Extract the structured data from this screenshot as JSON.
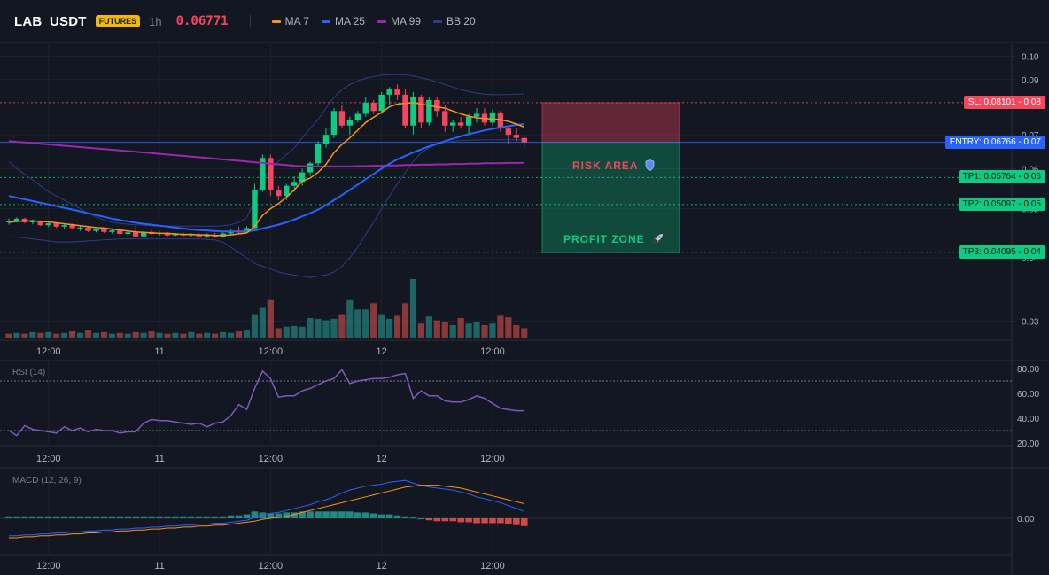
{
  "header": {
    "symbol": "LAB_USDT",
    "badge": "FUTURES",
    "timeframe": "1h",
    "price": "0.06771",
    "price_color": "#f6465d"
  },
  "legend": [
    {
      "label": "MA 7",
      "color": "#f7931a"
    },
    {
      "label": "MA 25",
      "color": "#2962ff"
    },
    {
      "label": "MA 99",
      "color": "#9c27b0"
    },
    {
      "label": "BB 20",
      "color": "#2a3e8a"
    }
  ],
  "time_axis": [
    "12:00",
    "11",
    "12:00",
    "12",
    "12:00"
  ],
  "price_axis": [
    "0.10",
    "0.09",
    "0.07",
    "0.06",
    "0.05",
    "0.04",
    "0.03"
  ],
  "zones": {
    "risk_label": "RISK AREA",
    "profit_label": "PROFIT ZONE",
    "risk_icon": "shield-icon",
    "profit_icon": "rocket-icon"
  },
  "levels": [
    {
      "label": "SL: 0.08101",
      "axis": "0.08",
      "price": 0.08101,
      "color": "#f6465d"
    },
    {
      "label": "ENTRY: 0.06766",
      "axis": "0.07",
      "price": 0.06766,
      "color": "#2962ff"
    },
    {
      "label": "TP1: 0.05764",
      "axis": "0.06",
      "price": 0.05764,
      "color": "#0ecb81"
    },
    {
      "label": "TP2: 0.05097",
      "axis": "0.05",
      "price": 0.05097,
      "color": "#0ecb81"
    },
    {
      "label": "TP3: 0.04095",
      "axis": "0.04",
      "price": 0.04095,
      "color": "#0ecb81"
    }
  ],
  "rsi": {
    "title": "RSI (14)",
    "axis": [
      "80.00",
      "60.00",
      "40.00",
      "20.00"
    ],
    "levels": [
      70,
      30
    ],
    "values": [
      30,
      26,
      34,
      31,
      30,
      29,
      28,
      33,
      30,
      32,
      29,
      31,
      30,
      30,
      28,
      29,
      29,
      36,
      39,
      38,
      38,
      37,
      36,
      35,
      36,
      33,
      36,
      37,
      42,
      51,
      47,
      64,
      78,
      72,
      57,
      58,
      58,
      62,
      64,
      67,
      70,
      72,
      79,
      68,
      70,
      71,
      72,
      72,
      73,
      75,
      76,
      56,
      62,
      58,
      58,
      54,
      53,
      53,
      55,
      58,
      56,
      52,
      48,
      47,
      46,
      46
    ]
  },
  "macd": {
    "title": "MACD (12, 26, 9)",
    "axis": [
      "0.00"
    ],
    "macd_line": [
      -0.0018,
      -0.0018,
      -0.0017,
      -0.0017,
      -0.0016,
      -0.0016,
      -0.0015,
      -0.0015,
      -0.0014,
      -0.0014,
      -0.0013,
      -0.0013,
      -0.0012,
      -0.0012,
      -0.0011,
      -0.0011,
      -0.001,
      -0.001,
      -0.0009,
      -0.0009,
      -0.0008,
      -0.0008,
      -0.0007,
      -0.0007,
      -0.0006,
      -0.0006,
      -0.0005,
      -0.0005,
      -0.0004,
      -0.0003,
      -0.0002,
      0.0001,
      0.0004,
      0.0005,
      0.0006,
      0.0008,
      0.001,
      0.0012,
      0.0014,
      0.0017,
      0.0019,
      0.0022,
      0.0026,
      0.0029,
      0.0031,
      0.0033,
      0.0034,
      0.0035,
      0.0037,
      0.0038,
      0.0039,
      0.0036,
      0.0034,
      0.0032,
      0.0031,
      0.003,
      0.0029,
      0.0027,
      0.0025,
      0.0022,
      0.002,
      0.0018,
      0.0016,
      0.0013,
      0.001,
      0.0007
    ],
    "signal_line": [
      -0.002,
      -0.002,
      -0.0019,
      -0.0019,
      -0.0018,
      -0.0018,
      -0.0017,
      -0.0017,
      -0.0016,
      -0.0016,
      -0.0015,
      -0.0015,
      -0.0014,
      -0.0014,
      -0.0013,
      -0.0013,
      -0.0012,
      -0.0012,
      -0.0011,
      -0.0011,
      -0.001,
      -0.001,
      -0.0009,
      -0.0009,
      -0.0008,
      -0.0008,
      -0.0007,
      -0.0007,
      -0.0006,
      -0.0005,
      -0.0004,
      -0.0003,
      -0.0001,
      0.0,
      0.0001,
      0.0002,
      0.0004,
      0.0006,
      0.0008,
      0.001,
      0.0012,
      0.0014,
      0.0016,
      0.0018,
      0.002,
      0.0022,
      0.0024,
      0.0026,
      0.0028,
      0.003,
      0.0032,
      0.0033,
      0.0034,
      0.0034,
      0.0034,
      0.0033,
      0.0032,
      0.0031,
      0.0029,
      0.0027,
      0.0025,
      0.0023,
      0.0021,
      0.0019,
      0.0017,
      0.0015
    ],
    "histogram": [
      0.0002,
      0.0002,
      0.0002,
      0.0002,
      0.0002,
      0.0002,
      0.0002,
      0.0002,
      0.0002,
      0.0002,
      0.0002,
      0.0002,
      0.0002,
      0.0002,
      0.0002,
      0.0002,
      0.0002,
      0.0002,
      0.0002,
      0.0002,
      0.0002,
      0.0002,
      0.0002,
      0.0002,
      0.0002,
      0.0002,
      0.0002,
      0.0002,
      0.0003,
      0.0003,
      0.0004,
      0.0007,
      0.0006,
      0.0005,
      0.0005,
      0.0006,
      0.0006,
      0.0007,
      0.0007,
      0.0007,
      0.0007,
      0.0007,
      0.0007,
      0.0007,
      0.0006,
      0.0006,
      0.0005,
      0.0004,
      0.0004,
      0.0003,
      0.0002,
      0.0001,
      0.0,
      -0.0002,
      -0.0003,
      -0.0003,
      -0.0003,
      -0.0004,
      -0.0004,
      -0.0005,
      -0.0005,
      -0.0005,
      -0.0005,
      -0.0006,
      -0.0007,
      -0.0008
    ]
  },
  "chart_data": {
    "type": "candlestick",
    "symbol": "LAB_USDT",
    "interval": "1h",
    "x_ticks": [
      "12:00",
      "11",
      "12:00",
      "12",
      "12:00"
    ],
    "y_ticks": [
      0.1,
      0.09,
      0.07,
      0.06,
      0.05,
      0.04,
      0.03
    ],
    "ylim": [
      0.0275,
      0.1065
    ],
    "log_scale": true,
    "candles": [
      {
        "o": 0.047,
        "h": 0.0478,
        "l": 0.0465,
        "c": 0.0473
      },
      {
        "o": 0.0473,
        "h": 0.0481,
        "l": 0.047,
        "c": 0.0478
      },
      {
        "o": 0.0478,
        "h": 0.048,
        "l": 0.0468,
        "c": 0.047
      },
      {
        "o": 0.047,
        "h": 0.0476,
        "l": 0.0466,
        "c": 0.0472
      },
      {
        "o": 0.0472,
        "h": 0.0474,
        "l": 0.0462,
        "c": 0.0464
      },
      {
        "o": 0.0464,
        "h": 0.047,
        "l": 0.046,
        "c": 0.0468
      },
      {
        "o": 0.0468,
        "h": 0.047,
        "l": 0.0458,
        "c": 0.0461
      },
      {
        "o": 0.0461,
        "h": 0.0466,
        "l": 0.0456,
        "c": 0.0464
      },
      {
        "o": 0.0464,
        "h": 0.0467,
        "l": 0.0455,
        "c": 0.0458
      },
      {
        "o": 0.0458,
        "h": 0.0462,
        "l": 0.0452,
        "c": 0.0459
      },
      {
        "o": 0.0459,
        "h": 0.0461,
        "l": 0.045,
        "c": 0.0452
      },
      {
        "o": 0.0452,
        "h": 0.0457,
        "l": 0.0449,
        "c": 0.0455
      },
      {
        "o": 0.0455,
        "h": 0.0458,
        "l": 0.0448,
        "c": 0.045
      },
      {
        "o": 0.045,
        "h": 0.0456,
        "l": 0.0447,
        "c": 0.0453
      },
      {
        "o": 0.0453,
        "h": 0.0455,
        "l": 0.0443,
        "c": 0.0446
      },
      {
        "o": 0.0446,
        "h": 0.0451,
        "l": 0.0442,
        "c": 0.0449
      },
      {
        "o": 0.0449,
        "h": 0.0462,
        "l": 0.044,
        "c": 0.0441
      },
      {
        "o": 0.0441,
        "h": 0.0452,
        "l": 0.0439,
        "c": 0.045
      },
      {
        "o": 0.045,
        "h": 0.0454,
        "l": 0.0444,
        "c": 0.0446
      },
      {
        "o": 0.0446,
        "h": 0.0451,
        "l": 0.0442,
        "c": 0.0448
      },
      {
        "o": 0.0448,
        "h": 0.045,
        "l": 0.044,
        "c": 0.0443
      },
      {
        "o": 0.0443,
        "h": 0.0448,
        "l": 0.044,
        "c": 0.0446
      },
      {
        "o": 0.0446,
        "h": 0.0449,
        "l": 0.0441,
        "c": 0.0443
      },
      {
        "o": 0.0443,
        "h": 0.0447,
        "l": 0.0439,
        "c": 0.0445
      },
      {
        "o": 0.0445,
        "h": 0.0447,
        "l": 0.0439,
        "c": 0.0441
      },
      {
        "o": 0.0441,
        "h": 0.0447,
        "l": 0.0438,
        "c": 0.0444
      },
      {
        "o": 0.0444,
        "h": 0.0448,
        "l": 0.0438,
        "c": 0.044
      },
      {
        "o": 0.044,
        "h": 0.0449,
        "l": 0.0438,
        "c": 0.0447
      },
      {
        "o": 0.0447,
        "h": 0.0455,
        "l": 0.0445,
        "c": 0.0452
      },
      {
        "o": 0.0452,
        "h": 0.046,
        "l": 0.0446,
        "c": 0.0449
      },
      {
        "o": 0.0449,
        "h": 0.0462,
        "l": 0.0447,
        "c": 0.0458
      },
      {
        "o": 0.0458,
        "h": 0.056,
        "l": 0.0456,
        "c": 0.0545
      },
      {
        "o": 0.0545,
        "h": 0.064,
        "l": 0.054,
        "c": 0.063
      },
      {
        "o": 0.063,
        "h": 0.064,
        "l": 0.053,
        "c": 0.0545
      },
      {
        "o": 0.0545,
        "h": 0.0555,
        "l": 0.052,
        "c": 0.053
      },
      {
        "o": 0.053,
        "h": 0.056,
        "l": 0.052,
        "c": 0.0555
      },
      {
        "o": 0.0555,
        "h": 0.058,
        "l": 0.054,
        "c": 0.0565
      },
      {
        "o": 0.0565,
        "h": 0.06,
        "l": 0.0555,
        "c": 0.059
      },
      {
        "o": 0.059,
        "h": 0.062,
        "l": 0.058,
        "c": 0.0615
      },
      {
        "o": 0.0615,
        "h": 0.068,
        "l": 0.0605,
        "c": 0.067
      },
      {
        "o": 0.067,
        "h": 0.072,
        "l": 0.066,
        "c": 0.07
      },
      {
        "o": 0.07,
        "h": 0.079,
        "l": 0.069,
        "c": 0.078
      },
      {
        "o": 0.078,
        "h": 0.08,
        "l": 0.072,
        "c": 0.073
      },
      {
        "o": 0.073,
        "h": 0.076,
        "l": 0.07,
        "c": 0.075
      },
      {
        "o": 0.075,
        "h": 0.078,
        "l": 0.074,
        "c": 0.077
      },
      {
        "o": 0.077,
        "h": 0.083,
        "l": 0.076,
        "c": 0.081
      },
      {
        "o": 0.081,
        "h": 0.082,
        "l": 0.077,
        "c": 0.078
      },
      {
        "o": 0.078,
        "h": 0.085,
        "l": 0.077,
        "c": 0.084
      },
      {
        "o": 0.084,
        "h": 0.087,
        "l": 0.08,
        "c": 0.086
      },
      {
        "o": 0.086,
        "h": 0.088,
        "l": 0.082,
        "c": 0.084
      },
      {
        "o": 0.084,
        "h": 0.086,
        "l": 0.072,
        "c": 0.073
      },
      {
        "o": 0.073,
        "h": 0.085,
        "l": 0.07,
        "c": 0.083
      },
      {
        "o": 0.083,
        "h": 0.084,
        "l": 0.072,
        "c": 0.074
      },
      {
        "o": 0.074,
        "h": 0.083,
        "l": 0.073,
        "c": 0.082
      },
      {
        "o": 0.082,
        "h": 0.083,
        "l": 0.076,
        "c": 0.078
      },
      {
        "o": 0.078,
        "h": 0.08,
        "l": 0.071,
        "c": 0.073
      },
      {
        "o": 0.073,
        "h": 0.075,
        "l": 0.071,
        "c": 0.074
      },
      {
        "o": 0.074,
        "h": 0.076,
        "l": 0.072,
        "c": 0.073
      },
      {
        "o": 0.073,
        "h": 0.077,
        "l": 0.07,
        "c": 0.076
      },
      {
        "o": 0.076,
        "h": 0.079,
        "l": 0.074,
        "c": 0.077
      },
      {
        "o": 0.077,
        "h": 0.079,
        "l": 0.073,
        "c": 0.074
      },
      {
        "o": 0.074,
        "h": 0.0785,
        "l": 0.073,
        "c": 0.0775
      },
      {
        "o": 0.0775,
        "h": 0.078,
        "l": 0.071,
        "c": 0.072
      },
      {
        "o": 0.072,
        "h": 0.073,
        "l": 0.067,
        "c": 0.07
      },
      {
        "o": 0.07,
        "h": 0.072,
        "l": 0.068,
        "c": 0.069
      },
      {
        "o": 0.069,
        "h": 0.07,
        "l": 0.066,
        "c": 0.0677
      }
    ],
    "volume": [
      5,
      6,
      5,
      7,
      6,
      7,
      5,
      6,
      8,
      6,
      10,
      6,
      7,
      5,
      6,
      5,
      7,
      6,
      8,
      6,
      5,
      6,
      5,
      7,
      5,
      6,
      5,
      7,
      6,
      8,
      9,
      30,
      38,
      48,
      12,
      14,
      15,
      14,
      25,
      24,
      22,
      24,
      30,
      48,
      36,
      36,
      44,
      30,
      24,
      28,
      44,
      75,
      18,
      27,
      22,
      20,
      16,
      25,
      18,
      20,
      16,
      18,
      28,
      26,
      16,
      12
    ],
    "volume_up": [
      false,
      true,
      false,
      true,
      false,
      true,
      false,
      true,
      false,
      true,
      false,
      true,
      false,
      true,
      false,
      true,
      false,
      true,
      false,
      true,
      false,
      true,
      false,
      true,
      false,
      true,
      false,
      true,
      true,
      false,
      true,
      true,
      true,
      false,
      false,
      true,
      true,
      true,
      true,
      true,
      true,
      true,
      false,
      true,
      true,
      true,
      false,
      true,
      true,
      false,
      false,
      true,
      false,
      true,
      false,
      false,
      true,
      false,
      true,
      true,
      false,
      true,
      false,
      false,
      false,
      false
    ],
    "ma7": [
      0.047,
      0.0472,
      0.0473,
      0.0473,
      0.0472,
      0.0471,
      0.0469,
      0.0467,
      0.0465,
      0.0463,
      0.0461,
      0.0459,
      0.0458,
      0.0456,
      0.0454,
      0.0452,
      0.045,
      0.0449,
      0.0448,
      0.0447,
      0.0447,
      0.0446,
      0.0445,
      0.0445,
      0.0444,
      0.0444,
      0.0443,
      0.0443,
      0.0444,
      0.0446,
      0.0448,
      0.0462,
      0.0485,
      0.05,
      0.0512,
      0.0527,
      0.0545,
      0.0567,
      0.0575,
      0.059,
      0.0612,
      0.0645,
      0.067,
      0.069,
      0.0715,
      0.074,
      0.0758,
      0.0775,
      0.0795,
      0.0805,
      0.0808,
      0.081,
      0.0805,
      0.08,
      0.0795,
      0.079,
      0.078,
      0.077,
      0.0762,
      0.0756,
      0.0754,
      0.0752,
      0.075,
      0.0744,
      0.0735,
      0.0725
    ],
    "ma25": [
      0.053,
      0.0526,
      0.0522,
      0.0518,
      0.0514,
      0.051,
      0.0506,
      0.0502,
      0.0498,
      0.0494,
      0.049,
      0.0486,
      0.0482,
      0.0478,
      0.0475,
      0.0472,
      0.0469,
      0.0467,
      0.0465,
      0.0463,
      0.0461,
      0.0459,
      0.0457,
      0.0455,
      0.0454,
      0.0453,
      0.0452,
      0.0451,
      0.0451,
      0.0451,
      0.0451,
      0.0453,
      0.0457,
      0.0461,
      0.0465,
      0.047,
      0.0476,
      0.0483,
      0.049,
      0.0498,
      0.0508,
      0.052,
      0.0532,
      0.0545,
      0.0558,
      0.0572,
      0.0586,
      0.06,
      0.0614,
      0.0626,
      0.0636,
      0.0646,
      0.0655,
      0.0664,
      0.0672,
      0.068,
      0.0688,
      0.0695,
      0.0702,
      0.0708,
      0.0714,
      0.0719,
      0.0724,
      0.0728,
      0.0732,
      0.0735
    ],
    "ma99": [
      0.068,
      0.0678,
      0.0676,
      0.0674,
      0.0672,
      0.067,
      0.0668,
      0.0666,
      0.0664,
      0.0662,
      0.066,
      0.0658,
      0.0656,
      0.0654,
      0.0652,
      0.065,
      0.0648,
      0.0646,
      0.0644,
      0.0642,
      0.064,
      0.0638,
      0.0636,
      0.0634,
      0.0632,
      0.063,
      0.0628,
      0.0626,
      0.0624,
      0.0622,
      0.062,
      0.0618,
      0.0616,
      0.0614,
      0.0612,
      0.061,
      0.0608,
      0.0607,
      0.0606,
      0.0606,
      0.0606,
      0.0606,
      0.0606,
      0.0606,
      0.0607,
      0.0607,
      0.0608,
      0.0608,
      0.0609,
      0.0609,
      0.061,
      0.061,
      0.0611,
      0.0611,
      0.0612,
      0.0612,
      0.0613,
      0.0613,
      0.0614,
      0.0614,
      0.0615,
      0.0615,
      0.0615,
      0.0616,
      0.0616,
      0.0616
    ],
    "bb_upper": [
      0.062,
      0.06,
      0.0585,
      0.057,
      0.0555,
      0.054,
      0.053,
      0.052,
      0.051,
      0.05,
      0.049,
      0.0482,
      0.0475,
      0.047,
      0.0468,
      0.0466,
      0.0465,
      0.0464,
      0.0463,
      0.0462,
      0.0462,
      0.0462,
      0.0462,
      0.0462,
      0.0462,
      0.0462,
      0.0462,
      0.0463,
      0.0465,
      0.047,
      0.048,
      0.052,
      0.057,
      0.06,
      0.062,
      0.064,
      0.066,
      0.069,
      0.072,
      0.075,
      0.079,
      0.083,
      0.086,
      0.088,
      0.0895,
      0.0905,
      0.0912,
      0.0918,
      0.092,
      0.0921,
      0.092,
      0.0915,
      0.0908,
      0.09,
      0.089,
      0.088,
      0.087,
      0.086,
      0.0852,
      0.0846,
      0.0842,
      0.084,
      0.084,
      0.0841,
      0.0842,
      0.0843
    ],
    "bb_lower": [
      0.044,
      0.044,
      0.0438,
      0.0436,
      0.0434,
      0.0432,
      0.043,
      0.043,
      0.043,
      0.0431,
      0.0432,
      0.0433,
      0.0434,
      0.0435,
      0.0436,
      0.0436,
      0.0436,
      0.0436,
      0.0436,
      0.0436,
      0.0436,
      0.0436,
      0.0436,
      0.0436,
      0.0436,
      0.0435,
      0.0434,
      0.043,
      0.042,
      0.041,
      0.04,
      0.039,
      0.0385,
      0.038,
      0.0375,
      0.0372,
      0.037,
      0.0368,
      0.0366,
      0.0368,
      0.037,
      0.0375,
      0.0385,
      0.04,
      0.042,
      0.0445,
      0.047,
      0.05,
      0.053,
      0.056,
      0.059,
      0.062,
      0.0645,
      0.066,
      0.067,
      0.0676,
      0.068,
      0.0682,
      0.0683,
      0.0684,
      0.0684,
      0.0684,
      0.0684,
      0.0684,
      0.0684,
      0.0684
    ]
  }
}
